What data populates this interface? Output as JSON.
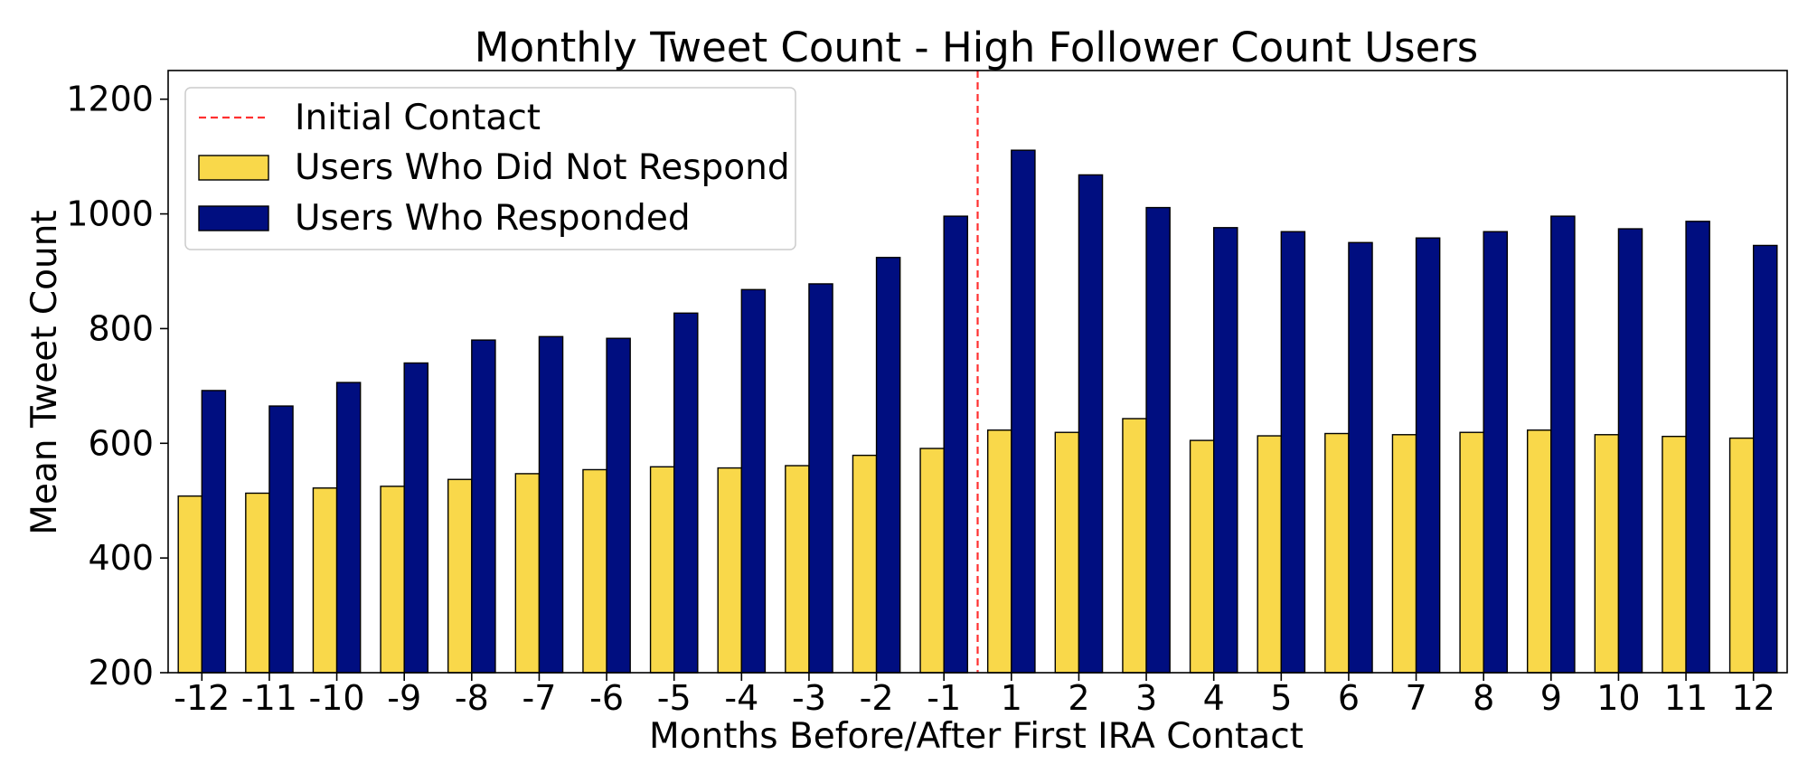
{
  "chart_data": {
    "type": "bar",
    "title": "Monthly Tweet Count - High Follower Count Users",
    "xlabel": "Months Before/After First IRA Contact",
    "ylabel": "Mean Tweet Count",
    "ylim": [
      200,
      1250
    ],
    "yticks": [
      200,
      400,
      600,
      800,
      1000,
      1200
    ],
    "categories": [
      "-12",
      "-11",
      "-10",
      "-9",
      "-8",
      "-7",
      "-6",
      "-5",
      "-4",
      "-3",
      "-2",
      "-1",
      "1",
      "2",
      "3",
      "4",
      "5",
      "6",
      "7",
      "8",
      "9",
      "10",
      "11",
      "12"
    ],
    "series": [
      {
        "name": "Users Who Did Not Respond",
        "color": "#f9d84a",
        "values": [
          508,
          513,
          522,
          525,
          537,
          547,
          554,
          559,
          557,
          561,
          579,
          591,
          623,
          619,
          643,
          605,
          613,
          617,
          615,
          619,
          623,
          615,
          612,
          609
        ]
      },
      {
        "name": "Users Who Responded",
        "color": "#000e80",
        "values": [
          692,
          665,
          706,
          740,
          780,
          786,
          783,
          827,
          868,
          878,
          924,
          996,
          1111,
          1068,
          1011,
          976,
          969,
          950,
          958,
          969,
          996,
          974,
          987,
          945
        ]
      }
    ],
    "annotations": [
      {
        "type": "vline",
        "x_between": [
          "-1",
          "1"
        ],
        "label": "Initial Contact",
        "color": "#ff3030",
        "style": "dashed"
      }
    ],
    "legend": {
      "position": "top-left",
      "items": [
        "Initial Contact",
        "Users Who Did Not Respond",
        "Users Who Responded"
      ]
    },
    "grid": false
  }
}
